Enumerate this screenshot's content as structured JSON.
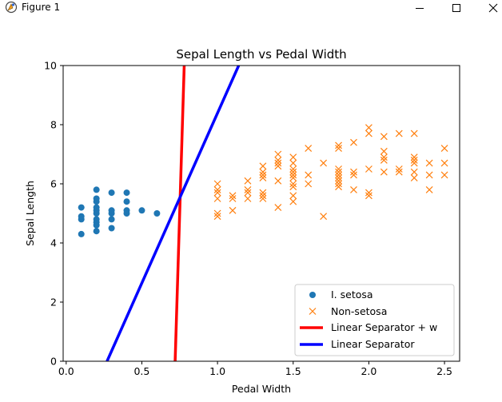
{
  "window": {
    "title": "Figure 1",
    "icons": {
      "app": "python-figure-icon",
      "minimize": "minimize-icon",
      "maximize": "maximize-icon",
      "close": "close-icon"
    }
  },
  "colors": {
    "blue": "#1f77b4",
    "orange": "#ff7f0e",
    "red": "#ff0000",
    "lineBlue": "#0000ff",
    "frame": "#000000"
  },
  "chart_data": {
    "type": "scatter",
    "title": "Sepal Length vs Pedal Width",
    "xlabel": "Pedal Width",
    "ylabel": "Sepal Length",
    "xlim": [
      -0.02,
      2.6
    ],
    "ylim": [
      0,
      10
    ],
    "xticks": [
      0.0,
      0.5,
      1.0,
      1.5,
      2.0,
      2.5
    ],
    "xtick_labels": [
      "0.0",
      "0.5",
      "1.0",
      "1.5",
      "2.0",
      "2.5"
    ],
    "yticks": [
      0,
      2,
      4,
      6,
      8,
      10
    ],
    "ytick_labels": [
      "0",
      "2",
      "4",
      "6",
      "8",
      "10"
    ],
    "grid": false,
    "legend_position": "lower-right",
    "series": [
      {
        "name": "I. setosa",
        "kind": "scatter",
        "marker": "circle",
        "color": "#1f77b4",
        "points": [
          [
            0.1,
            4.3
          ],
          [
            0.1,
            4.8
          ],
          [
            0.1,
            4.9
          ],
          [
            0.1,
            5.2
          ],
          [
            0.2,
            4.4
          ],
          [
            0.2,
            4.6
          ],
          [
            0.2,
            4.7
          ],
          [
            0.2,
            4.8
          ],
          [
            0.2,
            5.0
          ],
          [
            0.2,
            5.1
          ],
          [
            0.2,
            5.2
          ],
          [
            0.2,
            5.4
          ],
          [
            0.2,
            5.5
          ],
          [
            0.2,
            5.8
          ],
          [
            0.3,
            4.5
          ],
          [
            0.3,
            4.8
          ],
          [
            0.3,
            5.0
          ],
          [
            0.3,
            5.1
          ],
          [
            0.3,
            5.7
          ],
          [
            0.4,
            5.0
          ],
          [
            0.4,
            5.1
          ],
          [
            0.4,
            5.4
          ],
          [
            0.4,
            5.7
          ],
          [
            0.5,
            5.1
          ],
          [
            0.6,
            5.0
          ]
        ]
      },
      {
        "name": "Non-setosa",
        "kind": "scatter",
        "marker": "x",
        "color": "#ff7f0e",
        "points": [
          [
            1.0,
            4.9
          ],
          [
            1.0,
            5.0
          ],
          [
            1.0,
            5.5
          ],
          [
            1.0,
            5.7
          ],
          [
            1.0,
            5.8
          ],
          [
            1.0,
            6.0
          ],
          [
            1.1,
            5.1
          ],
          [
            1.1,
            5.5
          ],
          [
            1.1,
            5.6
          ],
          [
            1.2,
            5.5
          ],
          [
            1.2,
            5.7
          ],
          [
            1.2,
            5.8
          ],
          [
            1.2,
            6.1
          ],
          [
            1.3,
            5.5
          ],
          [
            1.3,
            5.6
          ],
          [
            1.3,
            5.7
          ],
          [
            1.3,
            6.2
          ],
          [
            1.3,
            6.3
          ],
          [
            1.3,
            6.4
          ],
          [
            1.3,
            6.6
          ],
          [
            1.4,
            5.2
          ],
          [
            1.4,
            6.1
          ],
          [
            1.4,
            6.6
          ],
          [
            1.4,
            6.7
          ],
          [
            1.4,
            6.8
          ],
          [
            1.4,
            7.0
          ],
          [
            1.5,
            5.4
          ],
          [
            1.5,
            5.6
          ],
          [
            1.5,
            5.9
          ],
          [
            1.5,
            6.0
          ],
          [
            1.5,
            6.2
          ],
          [
            1.5,
            6.3
          ],
          [
            1.5,
            6.4
          ],
          [
            1.5,
            6.5
          ],
          [
            1.5,
            6.7
          ],
          [
            1.5,
            6.9
          ],
          [
            1.6,
            6.0
          ],
          [
            1.6,
            6.3
          ],
          [
            1.6,
            7.2
          ],
          [
            1.7,
            4.9
          ],
          [
            1.7,
            6.7
          ],
          [
            1.8,
            5.9
          ],
          [
            1.8,
            6.0
          ],
          [
            1.8,
            6.1
          ],
          [
            1.8,
            6.2
          ],
          [
            1.8,
            6.3
          ],
          [
            1.8,
            6.4
          ],
          [
            1.8,
            6.5
          ],
          [
            1.8,
            7.2
          ],
          [
            1.8,
            7.3
          ],
          [
            1.9,
            5.8
          ],
          [
            1.9,
            6.3
          ],
          [
            1.9,
            6.4
          ],
          [
            1.9,
            7.4
          ],
          [
            2.0,
            5.6
          ],
          [
            2.0,
            5.7
          ],
          [
            2.0,
            6.5
          ],
          [
            2.0,
            7.7
          ],
          [
            2.0,
            7.9
          ],
          [
            2.1,
            6.4
          ],
          [
            2.1,
            6.8
          ],
          [
            2.1,
            6.9
          ],
          [
            2.1,
            7.1
          ],
          [
            2.1,
            7.6
          ],
          [
            2.2,
            6.4
          ],
          [
            2.2,
            6.5
          ],
          [
            2.2,
            7.7
          ],
          [
            2.3,
            6.2
          ],
          [
            2.3,
            6.4
          ],
          [
            2.3,
            6.7
          ],
          [
            2.3,
            6.8
          ],
          [
            2.3,
            6.9
          ],
          [
            2.3,
            7.7
          ],
          [
            2.4,
            5.8
          ],
          [
            2.4,
            6.3
          ],
          [
            2.4,
            6.7
          ],
          [
            2.5,
            6.3
          ],
          [
            2.5,
            6.7
          ],
          [
            2.5,
            7.2
          ]
        ]
      },
      {
        "name": "Linear Separator + w",
        "kind": "line",
        "color": "#ff0000",
        "points": [
          [
            0.72,
            0
          ],
          [
            0.78,
            10
          ]
        ]
      },
      {
        "name": "Linear Separator",
        "kind": "line",
        "color": "#0000ff",
        "points": [
          [
            0.27,
            0
          ],
          [
            1.14,
            10
          ]
        ]
      }
    ]
  }
}
